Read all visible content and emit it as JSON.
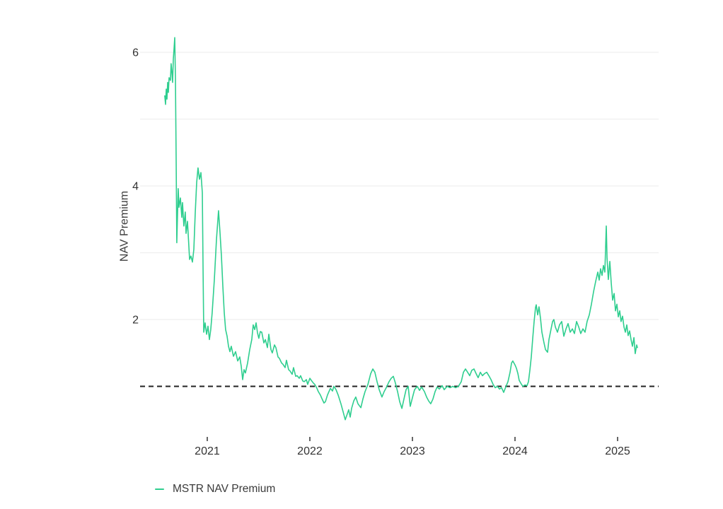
{
  "page": {
    "background": "#ffffff"
  },
  "chart_data": {
    "type": "line",
    "title": "",
    "xlabel": "",
    "ylabel": "NAV Premium",
    "grid": "horizontal-only",
    "legend_position": "bottom-left",
    "xlim": [
      2020.345,
      2025.4
    ],
    "ylim": [
      0.222,
      6.466
    ],
    "x_ticks": {
      "values": [
        2021,
        2022,
        2023,
        2024,
        2025
      ],
      "labels": [
        "2021",
        "2022",
        "2023",
        "2024",
        "2025"
      ]
    },
    "y_ticks": {
      "values": [
        2,
        4,
        6
      ],
      "labels": [
        "2",
        "4",
        "6"
      ]
    },
    "y_gridlines": [
      2,
      3,
      4,
      5,
      6
    ],
    "reference_line": {
      "y": 1,
      "style": "dashed",
      "color": "#222222",
      "width": 2,
      "dash": "7,5"
    },
    "colors": {
      "line": "#2FCE8F",
      "gridline": "#efefef",
      "tick_text": "#333333",
      "tick_mark": "#333333"
    },
    "series": [
      {
        "name": "MSTR NAV Premium",
        "color": "#2FCE8F",
        "x": [
          2020.586,
          2020.593,
          2020.6,
          2020.607,
          2020.614,
          2020.621,
          2020.628,
          2020.641,
          2020.648,
          2020.655,
          2020.662,
          2020.669,
          2020.676,
          2020.683,
          2020.69,
          2020.697,
          2020.703,
          2020.717,
          2020.724,
          2020.738,
          2020.752,
          2020.759,
          2020.772,
          2020.786,
          2020.793,
          2020.807,
          2020.828,
          2020.841,
          2020.855,
          2020.869,
          2020.883,
          2020.897,
          2020.91,
          2020.924,
          2020.938,
          2020.952,
          2020.959,
          2020.966,
          2020.979,
          2020.993,
          2021.007,
          2021.021,
          2021.034,
          2021.048,
          2021.069,
          2021.09,
          2021.11,
          2021.124,
          2021.138,
          2021.152,
          2021.166,
          2021.179,
          2021.193,
          2021.207,
          2021.221,
          2021.234,
          2021.255,
          2021.276,
          2021.297,
          2021.317,
          2021.331,
          2021.345,
          2021.359,
          2021.372,
          2021.393,
          2021.414,
          2021.434,
          2021.448,
          2021.462,
          2021.476,
          2021.49,
          2021.503,
          2021.517,
          2021.531,
          2021.552,
          2021.566,
          2021.586,
          2021.6,
          2021.621,
          2021.634,
          2021.655,
          2021.669,
          2021.69,
          2021.703,
          2021.724,
          2021.738,
          2021.759,
          2021.772,
          2021.793,
          2021.807,
          2021.828,
          2021.841,
          2021.862,
          2021.876,
          2021.897,
          2021.91,
          2021.931,
          2021.945,
          2021.966,
          2021.979,
          2022.0,
          2022.014,
          2022.034,
          2022.048,
          2022.069,
          2022.083,
          2022.103,
          2022.117,
          2022.138,
          2022.152,
          2022.172,
          2022.2,
          2022.221,
          2022.234,
          2022.255,
          2022.276,
          2022.303,
          2022.324,
          2022.345,
          2022.359,
          2022.379,
          2022.393,
          2022.407,
          2022.428,
          2022.448,
          2022.469,
          2022.497,
          2022.517,
          2022.538,
          2022.566,
          2022.593,
          2022.614,
          2022.634,
          2022.655,
          2022.676,
          2022.703,
          2022.724,
          2022.745,
          2022.772,
          2022.793,
          2022.814,
          2022.834,
          2022.855,
          2022.876,
          2022.897,
          2022.917,
          2022.938,
          2022.959,
          2022.979,
          2023.0,
          2023.021,
          2023.048,
          2023.069,
          2023.09,
          2023.117,
          2023.138,
          2023.159,
          2023.179,
          2023.2,
          2023.221,
          2023.241,
          2023.262,
          2023.29,
          2023.31,
          2023.338,
          2023.366,
          2023.393,
          2023.421,
          2023.448,
          2023.476,
          2023.497,
          2023.517,
          2023.538,
          2023.559,
          2023.579,
          2023.6,
          2023.621,
          2023.641,
          2023.662,
          2023.683,
          2023.703,
          2023.724,
          2023.745,
          2023.766,
          2023.786,
          2023.807,
          2023.828,
          2023.848,
          2023.869,
          2023.89,
          2023.91,
          2023.931,
          2023.952,
          2023.966,
          2023.979,
          2024.0,
          2024.014,
          2024.028,
          2024.041,
          2024.055,
          2024.076,
          2024.097,
          2024.117,
          2024.131,
          2024.145,
          2024.159,
          2024.172,
          2024.186,
          2024.2,
          2024.207,
          2024.221,
          2024.234,
          2024.248,
          2024.262,
          2024.283,
          2024.297,
          2024.317,
          2024.331,
          2024.352,
          2024.366,
          2024.379,
          2024.393,
          2024.414,
          2024.434,
          2024.455,
          2024.476,
          2024.497,
          2024.517,
          2024.538,
          2024.559,
          2024.579,
          2024.6,
          2024.621,
          2024.641,
          2024.662,
          2024.683,
          2024.703,
          2024.724,
          2024.745,
          2024.766,
          2024.786,
          2024.807,
          2024.821,
          2024.834,
          2024.848,
          2024.862,
          2024.876,
          2024.89,
          2024.897,
          2024.91,
          2024.924,
          2024.938,
          2024.952,
          2024.966,
          2024.979,
          2024.993,
          2025.007,
          2025.021,
          2025.034,
          2025.048,
          2025.062,
          2025.076,
          2025.09,
          2025.103,
          2025.117,
          2025.131,
          2025.145,
          2025.159,
          2025.172,
          2025.186,
          2025.193
        ],
        "y": [
          5.35,
          5.22,
          5.45,
          5.3,
          5.55,
          5.4,
          5.62,
          5.58,
          5.83,
          5.7,
          5.55,
          5.9,
          6.05,
          6.22,
          5.6,
          4.4,
          3.15,
          3.96,
          3.68,
          3.82,
          3.53,
          3.75,
          3.4,
          3.61,
          3.29,
          3.47,
          2.9,
          2.95,
          2.86,
          3.05,
          3.6,
          4.05,
          4.27,
          4.1,
          4.2,
          3.9,
          2.8,
          1.81,
          1.95,
          1.78,
          1.9,
          1.7,
          1.85,
          2.1,
          2.6,
          3.2,
          3.63,
          3.3,
          2.95,
          2.5,
          2.1,
          1.85,
          1.75,
          1.6,
          1.52,
          1.6,
          1.45,
          1.52,
          1.38,
          1.44,
          1.3,
          1.1,
          1.25,
          1.2,
          1.35,
          1.55,
          1.7,
          1.92,
          1.85,
          1.95,
          1.8,
          1.72,
          1.82,
          1.81,
          1.65,
          1.7,
          1.58,
          1.78,
          1.55,
          1.5,
          1.62,
          1.58,
          1.44,
          1.42,
          1.35,
          1.33,
          1.28,
          1.39,
          1.25,
          1.23,
          1.18,
          1.28,
          1.15,
          1.16,
          1.12,
          1.16,
          1.08,
          1.07,
          1.1,
          1.03,
          1.12,
          1.09,
          1.05,
          1.03,
          0.97,
          0.92,
          0.87,
          0.82,
          0.75,
          0.77,
          0.87,
          0.97,
          0.93,
          1.0,
          0.95,
          0.87,
          0.74,
          0.62,
          0.5,
          0.56,
          0.65,
          0.54,
          0.67,
          0.78,
          0.84,
          0.74,
          0.68,
          0.81,
          0.92,
          1.03,
          1.19,
          1.26,
          1.21,
          1.07,
          0.95,
          0.84,
          0.92,
          0.98,
          1.07,
          1.12,
          1.15,
          1.05,
          0.92,
          0.77,
          0.67,
          0.81,
          0.95,
          1.0,
          0.7,
          0.83,
          0.95,
          1.0,
          0.94,
          0.99,
          0.92,
          0.84,
          0.78,
          0.74,
          0.81,
          0.92,
          0.99,
          0.96,
          1.01,
          0.95,
          1.0,
          0.98,
          1.0,
          0.98,
          1.0,
          1.07,
          1.21,
          1.26,
          1.21,
          1.16,
          1.24,
          1.26,
          1.19,
          1.13,
          1.21,
          1.16,
          1.19,
          1.21,
          1.16,
          1.1,
          1.03,
          0.98,
          1.0,
          0.96,
          0.98,
          0.91,
          0.99,
          1.07,
          1.21,
          1.35,
          1.38,
          1.32,
          1.27,
          1.19,
          1.09,
          1.05,
          1.0,
          1.02,
          1.01,
          1.07,
          1.24,
          1.44,
          1.7,
          1.97,
          2.18,
          2.22,
          2.07,
          2.19,
          2.02,
          1.81,
          1.65,
          1.55,
          1.51,
          1.7,
          1.86,
          1.97,
          2.0,
          1.89,
          1.81,
          1.92,
          1.97,
          1.75,
          1.86,
          1.94,
          1.81,
          1.86,
          1.79,
          1.97,
          1.89,
          1.79,
          1.86,
          1.81,
          1.97,
          2.07,
          2.23,
          2.42,
          2.57,
          2.71,
          2.59,
          2.76,
          2.66,
          2.81,
          2.71,
          3.4,
          2.92,
          2.6,
          2.87,
          2.55,
          2.29,
          2.39,
          2.13,
          2.23,
          2.04,
          2.13,
          1.97,
          2.05,
          1.89,
          1.81,
          1.92,
          1.76,
          1.83,
          1.7,
          1.6,
          1.73,
          1.49,
          1.62,
          1.58
        ]
      }
    ],
    "legend": {
      "entries": [
        "MSTR NAV Premium"
      ]
    }
  }
}
